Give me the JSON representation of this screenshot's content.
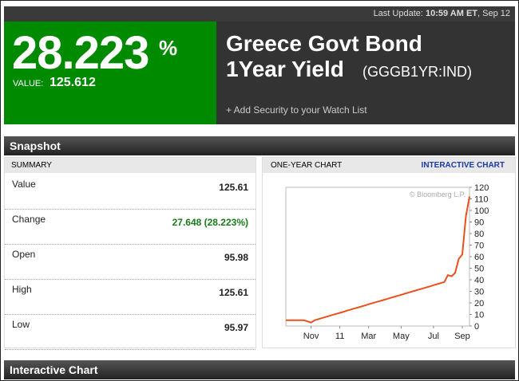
{
  "update": {
    "label": "Last Update:",
    "time": "10:59 AM ET",
    "date": ", Sep 12"
  },
  "quote": {
    "yield": "28.223",
    "yield_unit": "%",
    "value_label": "VALUE:",
    "value": "125.612"
  },
  "security": {
    "name_line1": "Greece Govt Bond",
    "name_line2": "1Year Yield",
    "ticker": "(GGGB1YR:IND)",
    "watch_link": "+ Add Security to your Watch List"
  },
  "snapshot": {
    "title": "Snapshot",
    "summary_title": "SUMMARY",
    "rows": [
      [
        "Value",
        "125.61"
      ],
      [
        "Change",
        "27.648 (28.223%)"
      ],
      [
        "Open",
        "95.98"
      ],
      [
        "High",
        "125.61"
      ],
      [
        "Low",
        "95.97"
      ]
    ]
  },
  "one_year_chart": {
    "type": "line",
    "title": "ONE-YEAR CHART",
    "link": "INTERACTIVE CHART",
    "watermark": "© Bloomberg L.P.",
    "color": "#e8501e",
    "values": [
      5,
      5,
      5,
      5,
      5,
      5,
      4,
      3,
      5,
      5.9,
      6.8,
      7.8,
      8.7,
      9.6,
      10.5,
      11.4,
      12.3,
      13.3,
      14.2,
      15.1,
      16,
      16.9,
      17.8,
      18.8,
      19.7,
      20.6,
      21.5,
      22.4,
      23.3,
      24.3,
      25.2,
      26.1,
      27,
      27.9,
      28.8,
      29.8,
      30.7,
      31.6,
      32.5,
      33.4,
      34.3,
      35.3,
      36.2,
      37.1,
      38,
      44,
      43,
      46,
      58,
      62,
      95,
      112
    ],
    "xlim": [
      0,
      51
    ],
    "xticks": [
      {
        "value": 7,
        "label": "Nov"
      },
      {
        "value": 15,
        "label": "11"
      },
      {
        "value": 23,
        "label": "Mar"
      },
      {
        "value": 32,
        "label": "May"
      },
      {
        "value": 41,
        "label": "Jul"
      },
      {
        "value": 49,
        "label": "Sep"
      }
    ],
    "ylim": [
      0,
      120
    ],
    "yticks": [
      0,
      10,
      20,
      30,
      40,
      50,
      60,
      70,
      80,
      90,
      100,
      110,
      120
    ]
  },
  "footer": {
    "title": "Interactive Chart"
  }
}
